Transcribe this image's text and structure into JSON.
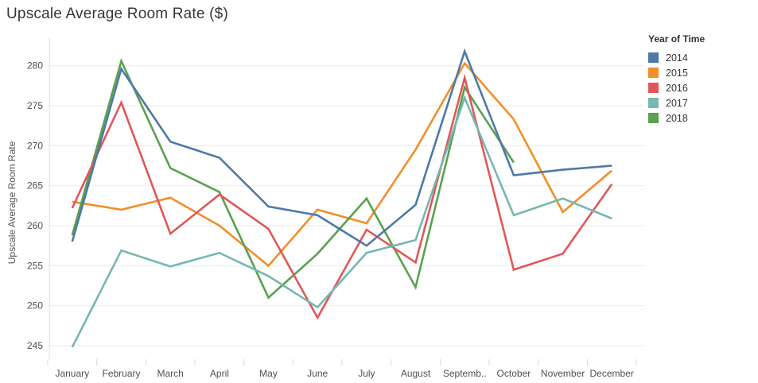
{
  "title": "Upscale Average Room Rate ($)",
  "legend": {
    "title": "Year of Time",
    "items": [
      {
        "label": "2014",
        "color": "#4e79a7"
      },
      {
        "label": "2015",
        "color": "#f28e2b"
      },
      {
        "label": "2016",
        "color": "#e15759"
      },
      {
        "label": "2017",
        "color": "#76b7b2"
      },
      {
        "label": "2018",
        "color": "#59a14f"
      }
    ]
  },
  "chart_data": {
    "type": "line",
    "title": "Upscale Average Room Rate ($)",
    "xlabel": "",
    "ylabel": "Upscale Average Room Rate",
    "ylim": [
      243,
      283
    ],
    "yticks": [
      245,
      250,
      255,
      260,
      265,
      270,
      275,
      280
    ],
    "grid": true,
    "legend_position": "top-right",
    "categories": [
      "January",
      "February",
      "March",
      "April",
      "May",
      "June",
      "July",
      "August",
      "September",
      "October",
      "November",
      "December"
    ],
    "x_tick_labels": [
      "January",
      "February",
      "March",
      "April",
      "May",
      "June",
      "July",
      "August",
      "Septemb..",
      "October",
      "November",
      "December"
    ],
    "series": [
      {
        "name": "2014",
        "color": "#4e79a7",
        "values": [
          258.0,
          279.6,
          270.5,
          268.5,
          262.4,
          261.3,
          257.5,
          262.6,
          281.8,
          266.3,
          267.0,
          267.5
        ]
      },
      {
        "name": "2015",
        "color": "#f28e2b",
        "values": [
          263.0,
          262.0,
          263.5,
          260.0,
          255.0,
          262.0,
          260.3,
          269.5,
          280.3,
          273.3,
          261.7,
          266.9
        ]
      },
      {
        "name": "2016",
        "color": "#e15759",
        "values": [
          262.2,
          275.4,
          259.0,
          263.9,
          259.6,
          248.5,
          259.5,
          255.4,
          278.5,
          254.5,
          256.5,
          265.2
        ]
      },
      {
        "name": "2017",
        "color": "#76b7b2",
        "values": [
          244.8,
          256.9,
          254.9,
          256.6,
          253.7,
          249.8,
          256.6,
          258.2,
          276.0,
          261.3,
          263.4,
          260.9
        ]
      },
      {
        "name": "2018",
        "color": "#59a14f",
        "values": [
          258.8,
          280.6,
          267.2,
          264.2,
          251.0,
          256.5,
          263.4,
          252.3,
          277.3,
          267.9,
          null,
          null
        ]
      }
    ]
  }
}
